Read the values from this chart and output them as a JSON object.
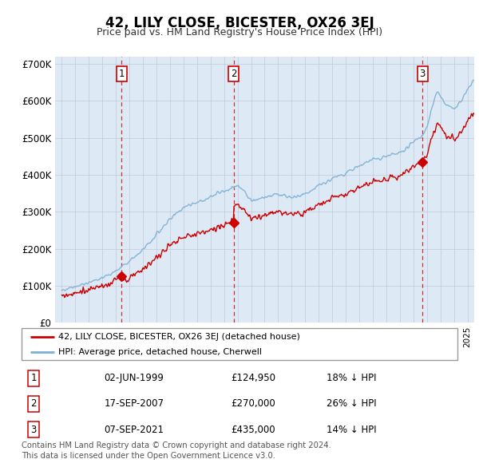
{
  "title": "42, LILY CLOSE, BICESTER, OX26 3EJ",
  "subtitle": "Price paid vs. HM Land Registry's House Price Index (HPI)",
  "hpi_color": "#7bafd4",
  "price_color": "#cc0000",
  "background_color": "#ddeaf5",
  "legend_label_price": "42, LILY CLOSE, BICESTER, OX26 3EJ (detached house)",
  "legend_label_hpi": "HPI: Average price, detached house, Cherwell",
  "transactions": [
    {
      "num": 1,
      "date": "02-JUN-1999",
      "price": 124950,
      "year": 1999.42,
      "pct": "18%",
      "dir": "↓"
    },
    {
      "num": 2,
      "date": "17-SEP-2007",
      "price": 270000,
      "year": 2007.71,
      "pct": "26%",
      "dir": "↓"
    },
    {
      "num": 3,
      "date": "07-SEP-2021",
      "price": 435000,
      "year": 2021.68,
      "pct": "14%",
      "dir": "↓"
    }
  ],
  "footer": "Contains HM Land Registry data © Crown copyright and database right 2024.\nThis data is licensed under the Open Government Licence v3.0.",
  "ylim": [
    0,
    720000
  ],
  "yticks": [
    0,
    100000,
    200000,
    300000,
    400000,
    500000,
    600000,
    700000
  ],
  "ytick_labels": [
    "£0",
    "£100K",
    "£200K",
    "£300K",
    "£400K",
    "£500K",
    "£600K",
    "£700K"
  ],
  "xlim_start": 1994.5,
  "xlim_end": 2025.5
}
